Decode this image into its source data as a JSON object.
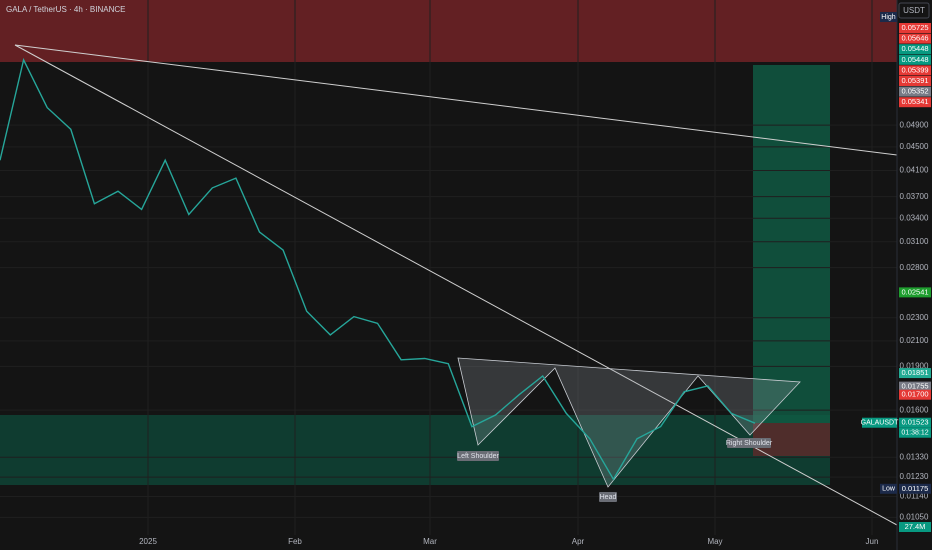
{
  "chart_data": {
    "type": "line",
    "title": "GALA / TetherUS · 4h · BINANCE",
    "currency": "USDT",
    "categories": [
      null,
      null,
      null,
      null,
      null,
      null,
      null,
      null,
      null,
      null,
      null,
      null,
      null,
      null,
      null,
      null,
      null,
      null,
      null,
      null,
      null,
      null,
      null,
      null,
      null,
      null,
      null,
      null,
      null,
      null,
      null,
      null,
      null
    ],
    "values": [
      0.0427,
      0.0633,
      0.0525,
      0.0482,
      0.036,
      0.0378,
      0.0352,
      0.0427,
      0.0345,
      0.0383,
      0.0398,
      0.0322,
      0.03,
      0.0236,
      0.0215,
      0.0231,
      0.0225,
      0.0195,
      0.0196,
      0.0192,
      0.015,
      0.0157,
      0.017,
      0.0183,
      0.0158,
      0.0143,
      0.0122,
      0.0143,
      0.015,
      0.0172,
      0.0176,
      0.0158,
      0.0152
    ],
    "color": "#26a69a",
    "log_scale": true,
    "grid": true,
    "ylim": [
      0.0098,
      0.0801
    ],
    "yticks": [
      {
        "value": 0.049,
        "label": "0.04900"
      },
      {
        "value": 0.045,
        "label": "0.04500"
      },
      {
        "value": 0.041,
        "label": "0.04100"
      },
      {
        "value": 0.037,
        "label": "0.03700"
      },
      {
        "value": 0.034,
        "label": "0.03400"
      },
      {
        "value": 0.031,
        "label": "0.03100"
      },
      {
        "value": 0.028,
        "label": "0.02800"
      },
      {
        "value": 0.023,
        "label": "0.02300"
      },
      {
        "value": 0.021,
        "label": "0.02100"
      },
      {
        "value": 0.019,
        "label": "0.01900"
      },
      {
        "value": 0.016,
        "label": "0.01600"
      },
      {
        "value": 0.0133,
        "label": "0.01330"
      },
      {
        "value": 0.0123,
        "label": "0.01230"
      },
      {
        "value": 0.0114,
        "label": "0.01140"
      },
      {
        "value": 0.0105,
        "label": "0.01050"
      }
    ],
    "xtick_labels": [
      "2025",
      "Feb",
      "Mar",
      "Apr",
      "May",
      "Jun"
    ],
    "high_label": "High",
    "high_stack": [
      {
        "label": "0.05725",
        "color": "#e53935"
      },
      {
        "label": "0.05646",
        "color": "#e53935"
      },
      {
        "label": "0.05448",
        "color": "#089981"
      },
      {
        "label": "0.05448",
        "color": "#089981"
      },
      {
        "label": "0.05399",
        "color": "#e53935"
      },
      {
        "label": "0.05391",
        "color": "#e53935"
      },
      {
        "label": "0.05352",
        "color": "#787b86"
      },
      {
        "label": "0.05341",
        "color": "#e53935"
      }
    ],
    "price_badges": [
      {
        "value": 0.02541,
        "label": "0.02541",
        "color": "#1e9e2e"
      },
      {
        "value": 0.01851,
        "label": "0.01851",
        "color": "#22ab94"
      },
      {
        "value": 0.01755,
        "label": "0.01755",
        "color": "#787b86"
      },
      {
        "value": 0.017,
        "label": "0.01700",
        "color": "#e53935"
      },
      {
        "value": 0.01523,
        "label": "0.01523",
        "color": "#089981"
      },
      {
        "value": 0.01175,
        "label": "0.01175",
        "color": "#1c2a4a"
      }
    ],
    "symbol": "GALAUSDT",
    "countdown": "01:38:12",
    "low_label": "Low",
    "volume_label": "27.4M",
    "annotations": [
      "Left Shoulder",
      "Head",
      "Right Shoulder"
    ]
  }
}
